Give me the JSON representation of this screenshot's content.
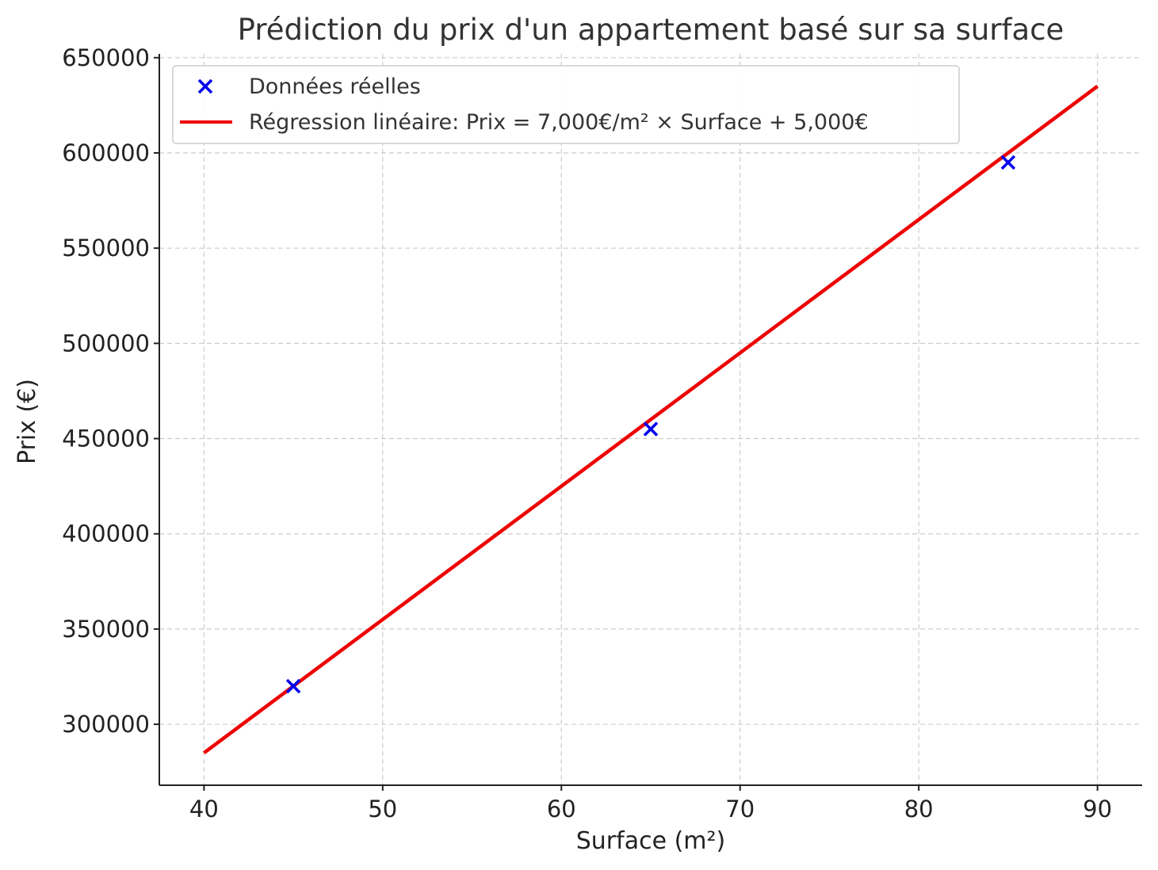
{
  "chart_data": {
    "type": "scatter",
    "title": "Prédiction du prix d'un appartement basé sur sa surface",
    "xlabel": "Surface (m²)",
    "ylabel": "Prix (€)",
    "xlim": [
      37.5,
      92.5
    ],
    "ylim": [
      268000,
      652000
    ],
    "x_ticks": [
      40,
      50,
      60,
      70,
      80,
      90
    ],
    "y_ticks": [
      300000,
      350000,
      400000,
      450000,
      500000,
      550000,
      600000,
      650000
    ],
    "grid": true,
    "legend_position": "top-left",
    "series": [
      {
        "name": "Données réelles",
        "kind": "scatter",
        "marker": "x",
        "color": "#0000ee",
        "x": [
          45,
          65,
          85
        ],
        "y": [
          320000,
          455000,
          595000
        ]
      },
      {
        "name": "Régression linéaire: Prix = 7,000€/m² × Surface + 5,000€",
        "kind": "line",
        "color": "#ee0000",
        "x": [
          40,
          90
        ],
        "y": [
          285000,
          635000
        ]
      }
    ]
  }
}
